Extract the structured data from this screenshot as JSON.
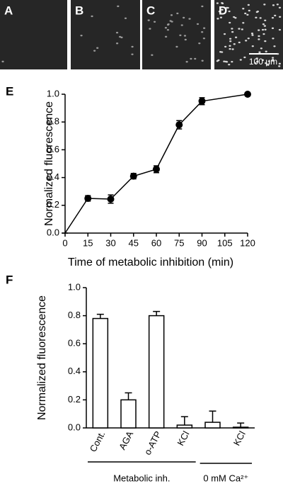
{
  "image_panels": {
    "labels": [
      "A",
      "B",
      "C",
      "D"
    ],
    "scale_bar": "100 μm"
  },
  "chart_data": [
    {
      "type": "line",
      "panel_label": "E",
      "x_label": "Time of metabolic inhibition (min)",
      "y_label": "Normalized fluorescence",
      "x": [
        0,
        15,
        30,
        45,
        60,
        75,
        90,
        120
      ],
      "series": [
        {
          "color": "#000000",
          "values": [
            0,
            0.25,
            0.245,
            0.41,
            0.46,
            0.78,
            0.95,
            1.0
          ],
          "errors": [
            0,
            0.02,
            0.03,
            0.02,
            0.025,
            0.03,
            0.025,
            0.01
          ]
        }
      ],
      "xlim": [
        0,
        120
      ],
      "xticks": [
        0,
        15,
        30,
        45,
        60,
        75,
        90,
        105,
        120
      ],
      "ylim": [
        0,
        1
      ],
      "yticks": [
        {
          "value": 0,
          "label": "0.0"
        },
        0.2,
        0.4,
        0.6,
        0.8,
        {
          "value": 1,
          "label": "1.0"
        }
      ]
    },
    {
      "type": "bar",
      "panel_label": "F",
      "y_label": "Normalized fluorescence",
      "categories": [
        "Cont.",
        "AGA",
        "o-ATP",
        "KCl",
        null,
        "KCl"
      ],
      "values": [
        0.78,
        0.2,
        0.8,
        0.02,
        0.04,
        0.005
      ],
      "errors": [
        0.03,
        0.05,
        0.03,
        0.06,
        0.08,
        0.03
      ],
      "color": "#ffffff",
      "groups": [
        {
          "label": "Metabolic inh.",
          "from": 0,
          "to": 3
        },
        {
          "label": "0 mM Ca²⁺",
          "from": 4,
          "to": 5
        }
      ],
      "ylim": [
        0,
        1
      ],
      "yticks": [
        {
          "value": 0,
          "label": "0.0"
        },
        0.2,
        0.4,
        0.6,
        0.8,
        {
          "value": 1,
          "label": "1.0"
        }
      ]
    }
  ]
}
